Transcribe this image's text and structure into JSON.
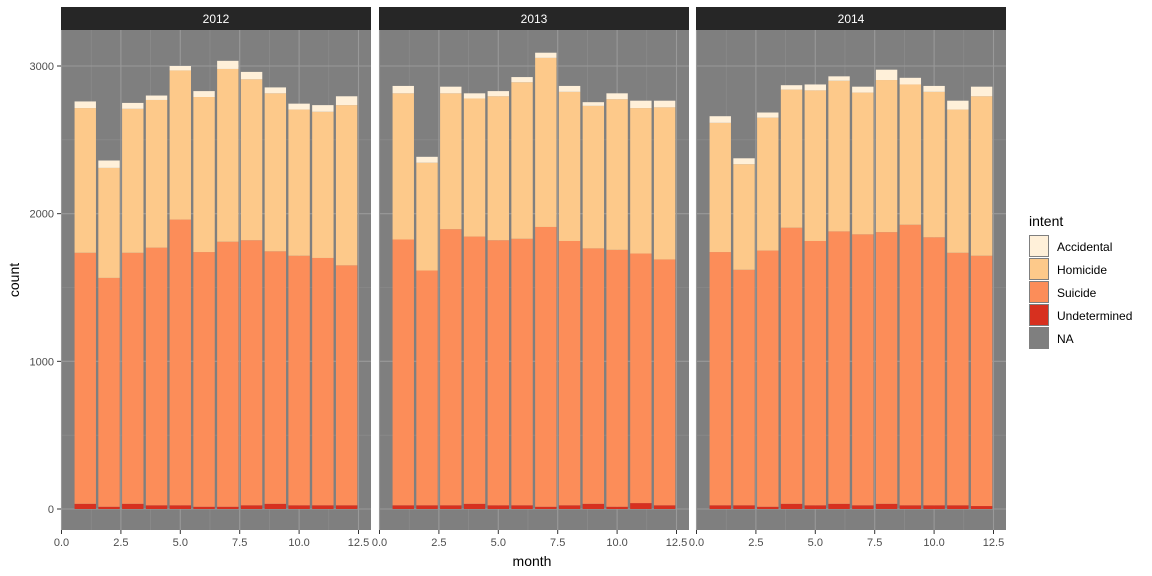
{
  "chart_data": {
    "type": "bar",
    "stacked": true,
    "xlabel": "month",
    "ylabel": "count",
    "xlim": [
      0,
      12.5
    ],
    "ylim": [
      0,
      3250
    ],
    "x_ticks": [
      "0.0",
      "2.5",
      "5.0",
      "7.5",
      "10.0",
      "12.5"
    ],
    "y_ticks": [
      "0",
      "1000",
      "2000",
      "3000"
    ],
    "grid": true,
    "legend_position": "right",
    "legend_title": "intent",
    "series": [
      {
        "name": "Accidental",
        "color": "#fff0d9"
      },
      {
        "name": "Homicide",
        "color": "#fdc98a"
      },
      {
        "name": "Suicide",
        "color": "#fc8d59"
      },
      {
        "name": "Undetermined",
        "color": "#d7301f"
      },
      {
        "name": "NA",
        "color": "#7f7f7f"
      }
    ],
    "panels": [
      {
        "label": "2012",
        "months": [
          1,
          2,
          3,
          4,
          5,
          6,
          7,
          8,
          9,
          10,
          11,
          12
        ],
        "Undetermined": [
          35,
          15,
          35,
          25,
          25,
          15,
          15,
          25,
          35,
          25,
          25,
          25
        ],
        "Suicide": [
          1700,
          1550,
          1700,
          1745,
          1935,
          1725,
          1795,
          1795,
          1710,
          1690,
          1675,
          1625
        ],
        "Homicide": [
          980,
          745,
          975,
          1000,
          1010,
          1050,
          1170,
          1090,
          1070,
          990,
          990,
          1085
        ],
        "Accidental": [
          45,
          50,
          40,
          30,
          30,
          40,
          55,
          50,
          40,
          40,
          45,
          60
        ]
      },
      {
        "label": "2013",
        "months": [
          1,
          2,
          3,
          4,
          5,
          6,
          7,
          8,
          9,
          10,
          11,
          12
        ],
        "Undetermined": [
          25,
          25,
          25,
          35,
          25,
          25,
          15,
          25,
          35,
          15,
          40,
          25
        ],
        "Suicide": [
          1800,
          1590,
          1870,
          1810,
          1795,
          1805,
          1895,
          1790,
          1730,
          1740,
          1690,
          1665
        ],
        "Homicide": [
          990,
          730,
          920,
          935,
          975,
          1060,
          1145,
          1010,
          965,
          1020,
          985,
          1030
        ],
        "Accidental": [
          50,
          40,
          45,
          35,
          35,
          35,
          35,
          40,
          25,
          40,
          50,
          45
        ]
      },
      {
        "label": "2014",
        "months": [
          1,
          2,
          3,
          4,
          5,
          6,
          7,
          8,
          9,
          10,
          11,
          12
        ],
        "Undetermined": [
          25,
          25,
          15,
          35,
          25,
          35,
          25,
          35,
          25,
          25,
          25,
          20
        ],
        "Suicide": [
          1715,
          1595,
          1735,
          1870,
          1790,
          1845,
          1835,
          1840,
          1900,
          1815,
          1710,
          1695
        ],
        "Homicide": [
          875,
          715,
          900,
          935,
          1020,
          1020,
          960,
          1030,
          950,
          985,
          970,
          1080
        ],
        "Accidental": [
          45,
          40,
          35,
          30,
          40,
          30,
          40,
          70,
          45,
          40,
          60,
          65
        ]
      }
    ]
  }
}
